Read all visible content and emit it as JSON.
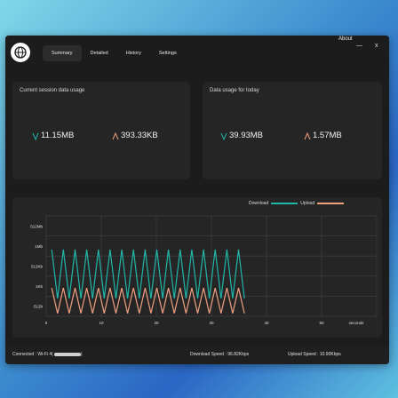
{
  "tabs": [
    {
      "label": "Summary",
      "active": true
    },
    {
      "label": "Detailed",
      "active": false
    },
    {
      "label": "History",
      "active": false
    },
    {
      "label": "Settings",
      "active": false
    }
  ],
  "titlebar": {
    "about": "About",
    "minimize": "—",
    "close": "x"
  },
  "cards": {
    "session": {
      "title": "Current session data usage",
      "download": "11.15MB",
      "upload": "393.33KB"
    },
    "today": {
      "title": "Data usage for today",
      "download": "39.93MB",
      "upload": "1.57MB"
    }
  },
  "chart_data": {
    "type": "line",
    "legend": [
      "Download",
      "Upload"
    ],
    "legend_position": "top-right",
    "y_tick_labels": [
      "512Mb",
      "1Mb",
      "512Kb",
      "1Kb",
      "512b"
    ],
    "x": [
      0,
      10,
      20,
      30,
      40,
      50
    ],
    "x_tick_labels": [
      "0",
      "10",
      "20",
      "30",
      "40",
      "50"
    ],
    "xlabel": "seconds",
    "xlim": [
      0,
      60
    ],
    "grid": true,
    "series": [
      {
        "name": "Download",
        "color": "#1fb7a8",
        "pattern": "oscillating between ~1Kb and ~1Mb from t=1 to t=37"
      },
      {
        "name": "Upload",
        "color": "#f0a080",
        "pattern": "oscillating between ~512b and ~1Kb from t=1 to t=37"
      }
    ]
  },
  "statusbar": {
    "connected": "Connected : Wi-Fi 4(",
    "download_speed": "Download Speed : 96.82Kbps",
    "upload_speed": "Upload Speed : 10.90Kbps"
  },
  "colors": {
    "download": "#1fb7a8",
    "upload": "#f0a080",
    "window_bg": "#1c1c1c",
    "card_bg": "#252525"
  }
}
